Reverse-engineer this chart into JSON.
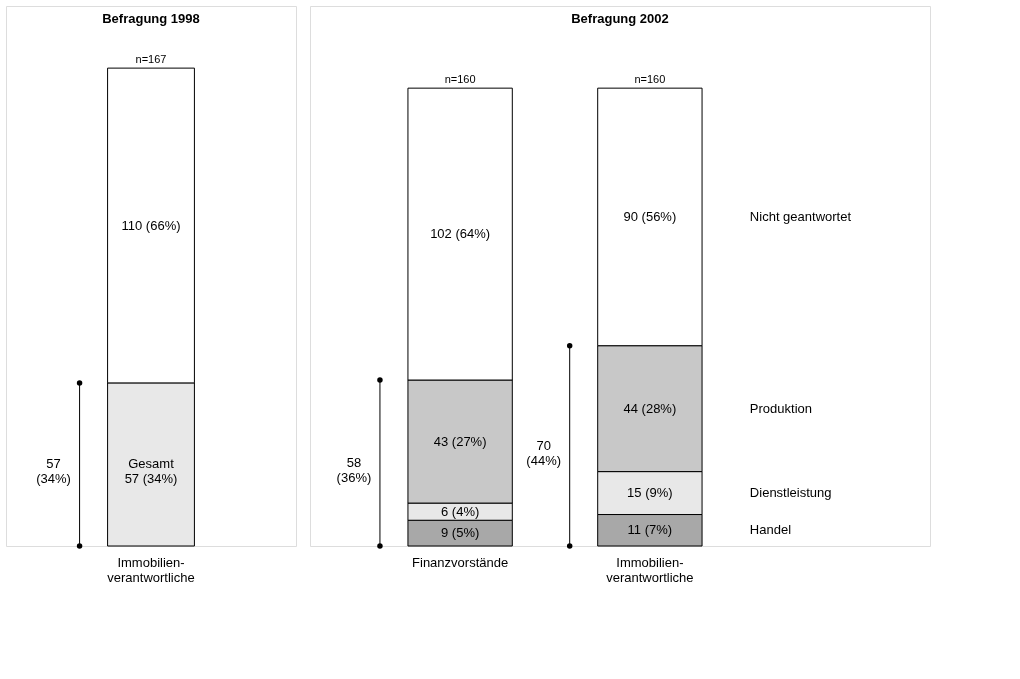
{
  "chart_data": [
    {
      "type": "bar",
      "stacked": true,
      "title": "Befragung 1998",
      "categories": [
        "Immobilien-verantwortliche"
      ],
      "totals": [
        "n=167"
      ],
      "series": [
        {
          "color": "#e8e8e8",
          "values": [
            57
          ],
          "value_labels": [
            "Gesamt 57 (34%)"
          ]
        },
        {
          "color": "#ffffff",
          "values": [
            110
          ],
          "value_labels": [
            "110 (66%)"
          ]
        }
      ],
      "annotations": [
        "57 (34%)"
      ]
    },
    {
      "type": "bar",
      "stacked": true,
      "title": "Befragung 2002",
      "categories": [
        "Finanzvorstände",
        "Immobilien-verantwortliche"
      ],
      "totals": [
        "n=160",
        "n=160"
      ],
      "series": [
        {
          "name": "Handel",
          "color": "#a8a8a8",
          "values": [
            9,
            11
          ],
          "value_labels": [
            "9 (5%)",
            "11 (7%)"
          ]
        },
        {
          "name": "Dienstleistung",
          "color": "#e8e8e8",
          "values": [
            6,
            15
          ],
          "value_labels": [
            "6 (4%)",
            "15 (9%)"
          ]
        },
        {
          "name": "Produktion",
          "color": "#c8c8c8",
          "values": [
            43,
            44
          ],
          "value_labels": [
            "43 (27%)",
            "44 (28%)"
          ]
        },
        {
          "name": "Nicht geantwortet",
          "color": "#ffffff",
          "values": [
            102,
            90
          ],
          "value_labels": [
            "102 (64%)",
            "90 (56%)"
          ]
        }
      ],
      "annotations": [
        "58 (36%)",
        "70 (44%)"
      ]
    }
  ]
}
